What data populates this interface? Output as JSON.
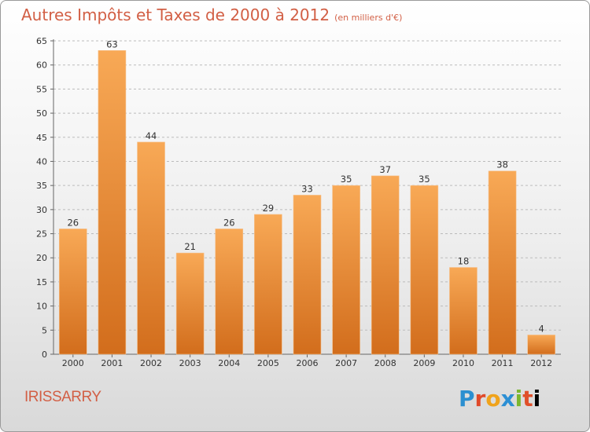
{
  "header": {
    "title": "Autres Impôts et Taxes de 2000 à 2012",
    "unit": "(en milliers d'€)"
  },
  "commune": "IRISSARRY",
  "brand": {
    "name": "Proxiti",
    "letters": [
      "P",
      "r",
      "o",
      "x",
      "i",
      "t",
      "i"
    ]
  },
  "colors": {
    "title": "#d25f45",
    "bar_light": "#f8a956",
    "bar_dark": "#d26d1c",
    "grid": "#bbbbbb"
  },
  "chart_data": {
    "type": "bar",
    "categories": [
      "2000",
      "2001",
      "2002",
      "2003",
      "2004",
      "2005",
      "2006",
      "2007",
      "2008",
      "2009",
      "2010",
      "2011",
      "2012"
    ],
    "values": [
      26,
      63,
      44,
      21,
      26,
      29,
      33,
      35,
      37,
      35,
      18,
      38,
      4
    ],
    "ylim": [
      0,
      65
    ],
    "yticks": [
      0,
      5,
      10,
      15,
      20,
      25,
      30,
      35,
      40,
      45,
      50,
      55,
      60,
      65
    ],
    "grid": true,
    "title": "Autres Impôts et Taxes de 2000 à 2012",
    "xlabel": "",
    "ylabel": ""
  }
}
